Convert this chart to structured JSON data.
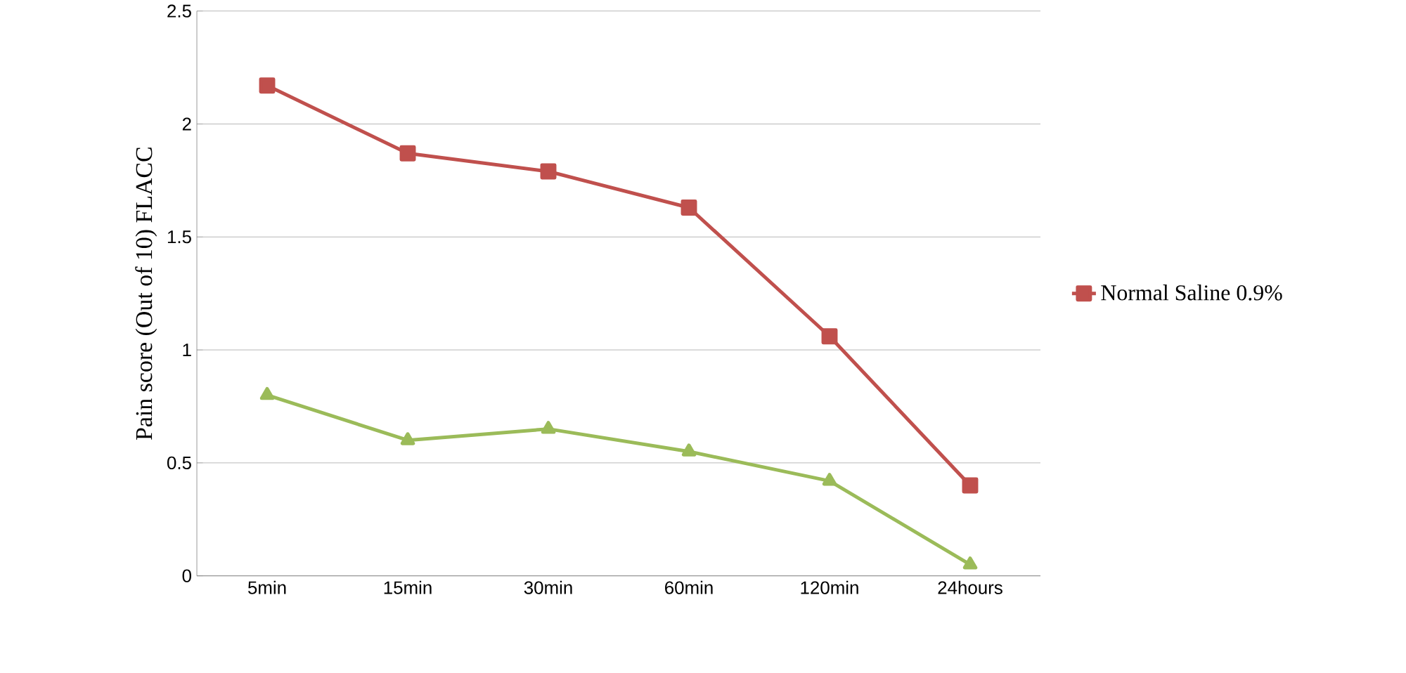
{
  "chart_data": {
    "type": "line",
    "ylabel": "Pain score (Out of 10) FLACC",
    "categories": [
      "5min",
      "15min",
      "30min",
      "60min",
      "120min",
      "24hours"
    ],
    "series": [
      {
        "name": "Normal Saline 0.9%",
        "color": "#c0504d",
        "marker": "square",
        "values": [
          2.17,
          1.87,
          1.79,
          1.63,
          1.06,
          0.4
        ]
      },
      {
        "color": "#9bbb59",
        "marker": "triangle",
        "values": [
          0.8,
          0.6,
          0.65,
          0.55,
          0.42,
          0.05
        ]
      }
    ],
    "ylim": [
      0,
      2.5
    ],
    "yticks": [
      0,
      0.5,
      1,
      1.5,
      2,
      2.5
    ],
    "grid": "y",
    "legend": "right"
  }
}
